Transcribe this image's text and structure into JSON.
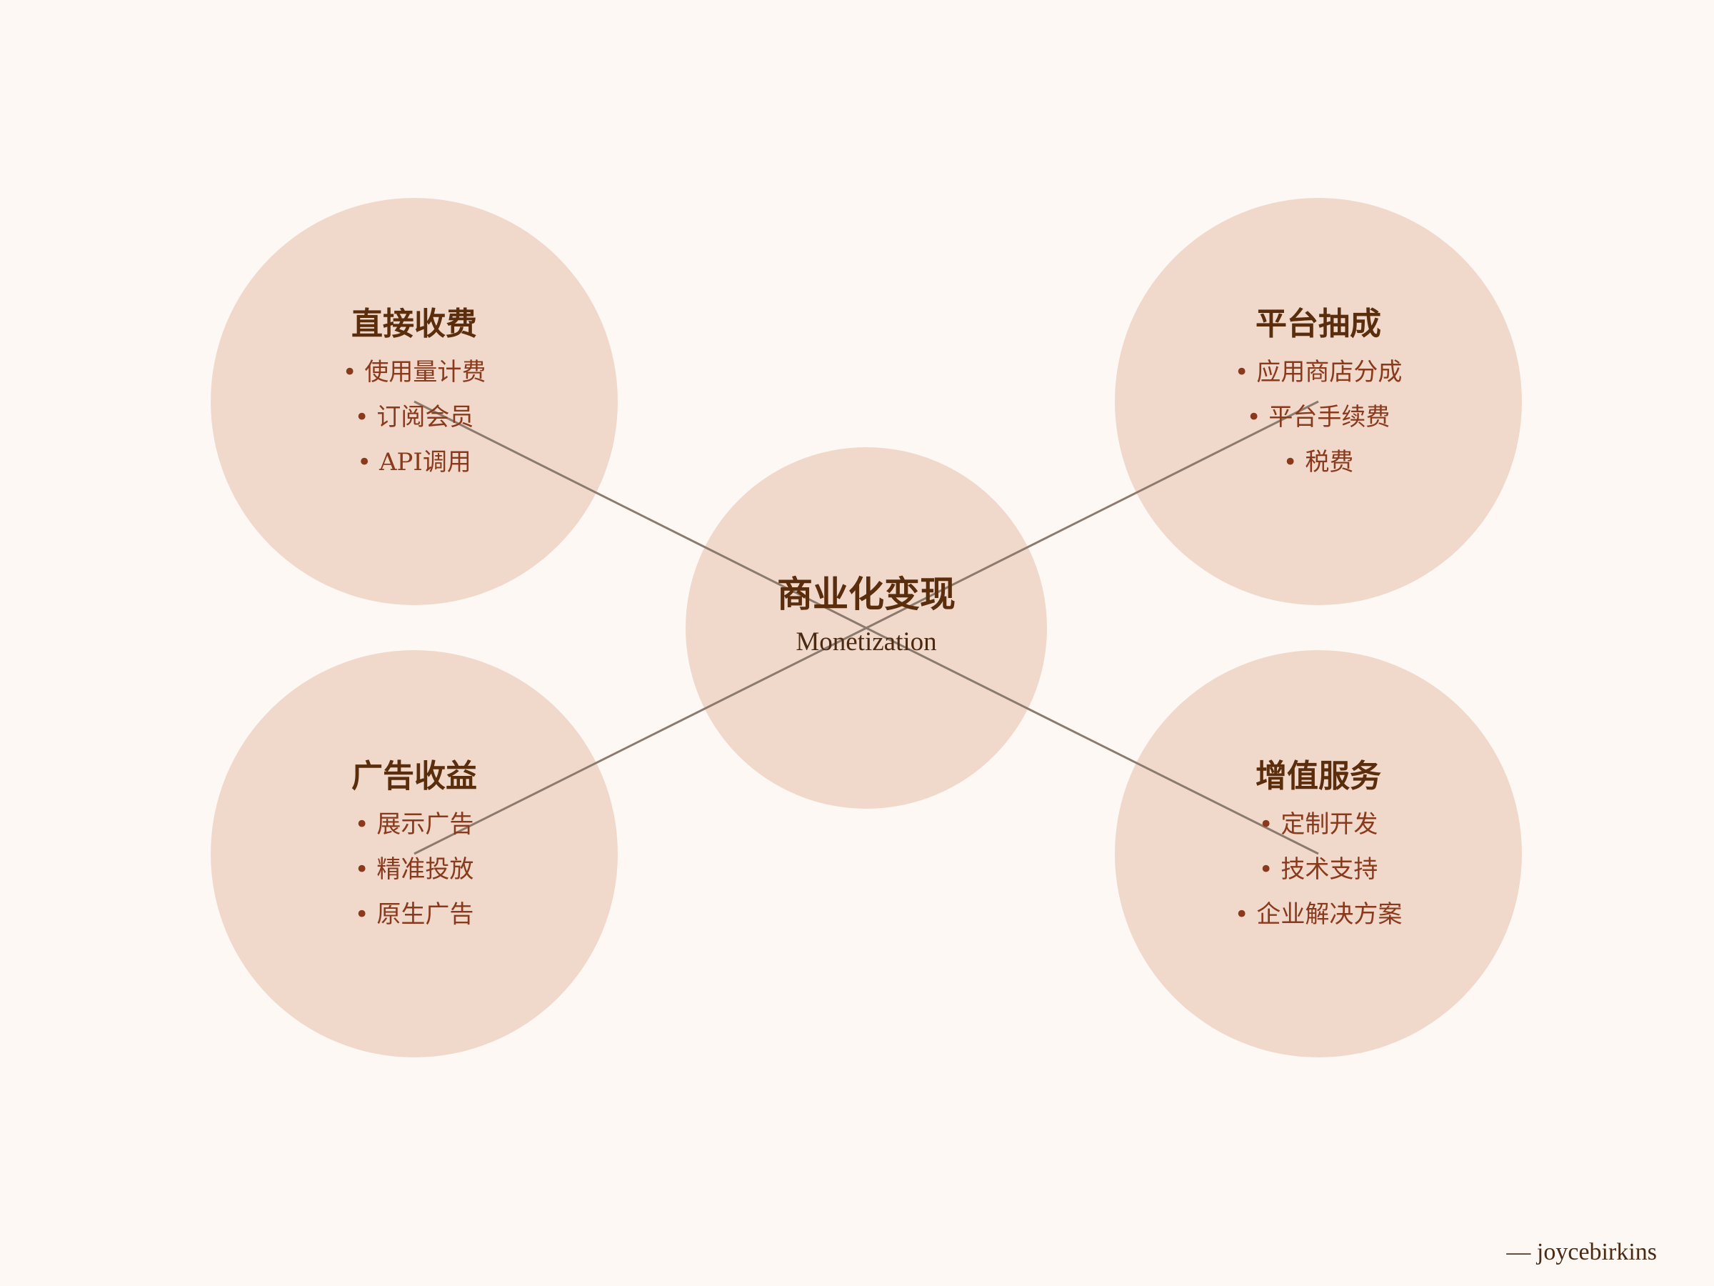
{
  "colors": {
    "background": "#fdf8f4",
    "circle_fill": "#f0d9cb",
    "connector": "#8c7a6e",
    "title": "#5a2d0c",
    "item": "#8a3a1c"
  },
  "center": {
    "title": "商业化变现",
    "subtitle": "Monetization"
  },
  "nodes": {
    "top_left": {
      "title": "直接收费",
      "items": [
        "• 使用量计费",
        "• 订阅会员",
        "• API调用"
      ]
    },
    "top_right": {
      "title": "平台抽成",
      "items": [
        "• 应用商店分成",
        "• 平台手续费",
        "• 税费"
      ]
    },
    "bottom_left": {
      "title": "广告收益",
      "items": [
        "• 展示广告",
        "• 精准投放",
        "• 原生广告"
      ]
    },
    "bottom_right": {
      "title": "增值服务",
      "items": [
        "• 定制开发",
        "• 技术支持",
        "• 企业解决方案"
      ]
    }
  },
  "signature": "— joycebirkins"
}
